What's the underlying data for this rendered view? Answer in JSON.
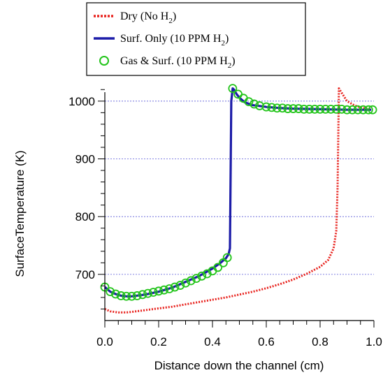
{
  "chart_data": {
    "type": "line",
    "xlabel": "Distance down the channel (cm)",
    "ylabel": "SurfaceTemperature (K)",
    "xlim": [
      0.0,
      1.0
    ],
    "ylim": [
      620,
      1030
    ],
    "x_ticks": [
      0.0,
      0.2,
      0.4,
      0.6,
      0.8,
      1.0
    ],
    "x_tick_labels": [
      "0.0",
      "0.2",
      "0.4",
      "0.6",
      "0.8",
      "1.0"
    ],
    "y_ticks": [
      700,
      800,
      900,
      1000
    ],
    "y_tick_labels": [
      "700",
      "800",
      "900",
      "1000"
    ],
    "grid": "horizontal dotted at major y ticks",
    "legend_position": "top-left, above plot",
    "series": [
      {
        "name": "Dry (No H2)",
        "legend": {
          "prefix": "Dry (No H",
          "sub": "2",
          "suffix": ")"
        },
        "style": "dotted",
        "color": "#e8231e",
        "x": [
          0.0,
          0.02,
          0.05,
          0.08,
          0.1,
          0.15,
          0.2,
          0.25,
          0.3,
          0.35,
          0.4,
          0.45,
          0.5,
          0.55,
          0.6,
          0.65,
          0.7,
          0.75,
          0.8,
          0.83,
          0.85,
          0.86,
          0.865,
          0.87,
          0.9,
          0.93,
          0.96,
          0.99
        ],
        "y": [
          640,
          636,
          634,
          634,
          635,
          638,
          641,
          644,
          648,
          652,
          656,
          660,
          665,
          670,
          676,
          683,
          691,
          701,
          713,
          725,
          745,
          775,
          850,
          1022,
          1000,
          992,
          988,
          986
        ]
      },
      {
        "name": "Surf. Only (10 PPM H2)",
        "legend": {
          "prefix": "Surf. Only (10 PPM H",
          "sub": "2",
          "suffix": ")"
        },
        "style": "solid",
        "color": "#1c1ca8",
        "x": [
          0.0,
          0.02,
          0.04,
          0.06,
          0.08,
          0.1,
          0.15,
          0.2,
          0.25,
          0.3,
          0.35,
          0.4,
          0.43,
          0.45,
          0.46,
          0.465,
          0.47,
          0.475,
          0.48,
          0.49,
          0.5,
          0.52,
          0.55,
          0.6,
          0.65,
          0.7,
          0.8,
          0.9,
          0.99
        ],
        "y": [
          678,
          670,
          666,
          663,
          662,
          662,
          665,
          670,
          677,
          687,
          697,
          710,
          720,
          728,
          735,
          745,
          1000,
          1022,
          1020,
          1012,
          1006,
          998,
          993,
          990,
          988,
          987,
          986,
          985,
          985
        ]
      },
      {
        "name": "Gas & Surf. (10 PPM H2)",
        "legend": {
          "prefix": "Gas & Surf. (10 PPM H",
          "sub": "2",
          "suffix": ")"
        },
        "style": "markers",
        "color": "#22c41a",
        "x": [
          0.0,
          0.02,
          0.04,
          0.06,
          0.08,
          0.1,
          0.12,
          0.14,
          0.16,
          0.18,
          0.2,
          0.22,
          0.24,
          0.26,
          0.28,
          0.3,
          0.32,
          0.34,
          0.36,
          0.38,
          0.4,
          0.42,
          0.44,
          0.455,
          0.475,
          0.495,
          0.515,
          0.535,
          0.555,
          0.575,
          0.6,
          0.62,
          0.64,
          0.66,
          0.68,
          0.7,
          0.72,
          0.74,
          0.76,
          0.78,
          0.8,
          0.82,
          0.84,
          0.86,
          0.88,
          0.9,
          0.92,
          0.94,
          0.96,
          0.98,
          0.995
        ],
        "y": [
          678,
          670,
          666,
          663,
          662,
          662,
          663,
          665,
          667,
          669,
          671,
          673,
          675,
          678,
          681,
          685,
          689,
          693,
          697,
          701,
          706,
          712,
          720,
          729,
          1022,
          1012,
          1005,
          999,
          995,
          992,
          990,
          989,
          988,
          988,
          987,
          987,
          987,
          986,
          986,
          986,
          986,
          986,
          986,
          986,
          986,
          985,
          985,
          985,
          985,
          985,
          985
        ]
      }
    ]
  }
}
